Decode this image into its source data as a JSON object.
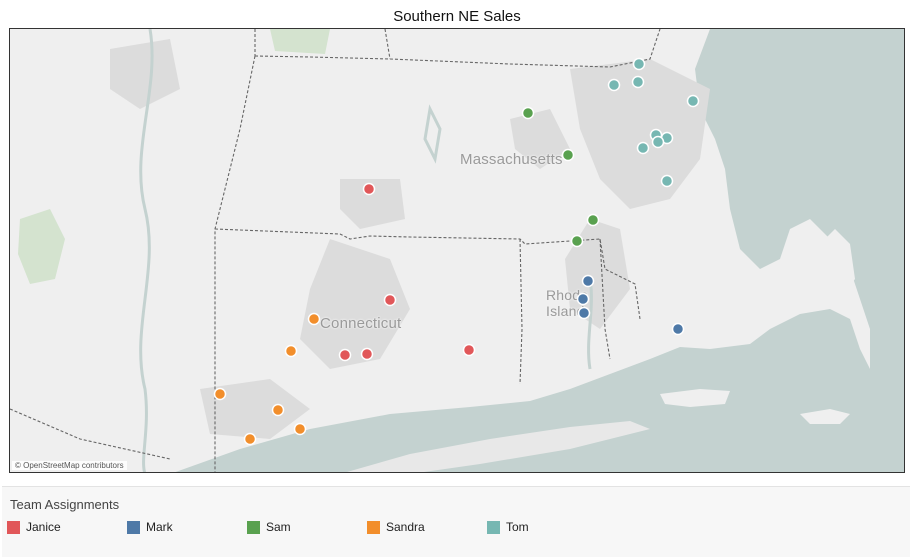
{
  "title": "Southern NE Sales",
  "map": {
    "state_labels": [
      "Massachusetts",
      "Connecticut",
      "Rhode\nIsland"
    ],
    "attribution": "© OpenStreetMap contributors"
  },
  "legend": {
    "title": "Team Assignments",
    "items": [
      {
        "label": "Janice",
        "color": "#e15759"
      },
      {
        "label": "Mark",
        "color": "#4e79a7"
      },
      {
        "label": "Sam",
        "color": "#59a14f"
      },
      {
        "label": "Sandra",
        "color": "#f28e2b"
      },
      {
        "label": "Tom",
        "color": "#76b7b2"
      }
    ]
  },
  "chart_data": {
    "type": "scatter",
    "title": "Southern NE Sales",
    "series": [
      {
        "name": "Janice",
        "count": 5
      },
      {
        "name": "Mark",
        "count": 4
      },
      {
        "name": "Sam",
        "count": 4
      },
      {
        "name": "Sandra",
        "count": 7
      },
      {
        "name": "Tom",
        "count": 9
      }
    ]
  }
}
